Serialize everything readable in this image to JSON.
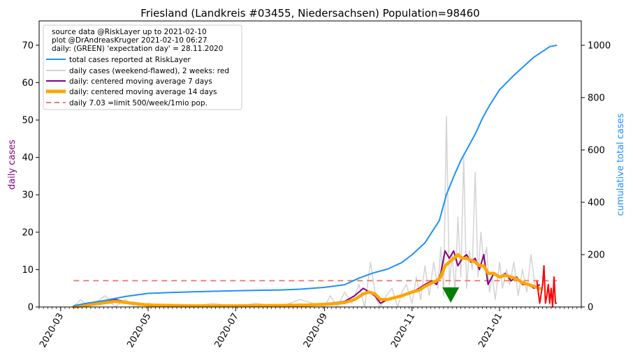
{
  "chart_data": {
    "type": "line",
    "title": "Friesland (Landkreis #03455, Niedersachsen) Population=98460",
    "ylabel_left": "daily cases",
    "ylabel_right": "cumulative total cases",
    "ylim_left": [
      0,
      76.5
    ],
    "ylim_right": [
      0,
      1093
    ],
    "yticks_left": [
      "0",
      "10",
      "20",
      "30",
      "40",
      "50",
      "60",
      "70"
    ],
    "yticks_right": [
      "0",
      "200",
      "400",
      "600",
      "800",
      "1000"
    ],
    "xticks": [
      "2020-03",
      "2020-05",
      "2020-07",
      "2020-09",
      "2020-11",
      "2021-01"
    ],
    "xlim": [
      "2020-02-15",
      "2021-02-27"
    ],
    "grid": false,
    "legend_position": "top-left",
    "legend_notes": [
      "source data @RiskLayer up to 2021-02-10",
      "plot @DrAndreasKruger 2021-02-10 06:27",
      "daily: (GREEN) 'expectation day' = 28.11.2020"
    ],
    "colors": {
      "total": "#1e90ff",
      "daily": "#d3d3d3",
      "daily_recent": "#ff0000",
      "ma7": "#800080",
      "ma14": "#ffa500",
      "limit": "#e8806f",
      "marker": "#008000",
      "left_axis_label": "#800080",
      "right_axis_label": "#1e90ff"
    },
    "expectation_day": {
      "date": "2020-11-28",
      "value": 3
    },
    "series": [
      {
        "name": "total cases reported at RiskLayer",
        "axis": "right",
        "x": [
          "2020-03-10",
          "2020-03-20",
          "2020-04-01",
          "2020-04-15",
          "2020-05-01",
          "2020-05-15",
          "2020-06-01",
          "2020-07-01",
          "2020-08-01",
          "2020-08-15",
          "2020-09-01",
          "2020-09-15",
          "2020-09-25",
          "2020-10-05",
          "2020-10-15",
          "2020-10-25",
          "2020-11-01",
          "2020-11-10",
          "2020-11-20",
          "2020-11-25",
          "2020-12-01",
          "2020-12-05",
          "2020-12-10",
          "2020-12-15",
          "2020-12-20",
          "2020-12-25",
          "2021-01-01",
          "2021-01-10",
          "2021-01-20",
          "2021-01-25",
          "2021-02-01",
          "2021-02-05",
          "2021-02-10"
        ],
        "y": [
          5,
          15,
          25,
          40,
          52,
          55,
          58,
          62,
          65,
          68,
          75,
          85,
          110,
          130,
          145,
          170,
          200,
          245,
          330,
          430,
          510,
          560,
          610,
          660,
          720,
          770,
          830,
          880,
          930,
          955,
          980,
          995,
          1000
        ]
      },
      {
        "name": "daily cases (weekend-flawed), 2 weeks: red",
        "axis": "left",
        "x": [
          "2020-03-10",
          "2020-03-15",
          "2020-03-20",
          "2020-03-25",
          "2020-04-01",
          "2020-04-08",
          "2020-04-15",
          "2020-04-22",
          "2020-05-01",
          "2020-05-15",
          "2020-06-01",
          "2020-06-15",
          "2020-07-01",
          "2020-07-15",
          "2020-08-01",
          "2020-08-15",
          "2020-09-01",
          "2020-09-05",
          "2020-09-10",
          "2020-09-15",
          "2020-09-20",
          "2020-09-25",
          "2020-09-29",
          "2020-10-03",
          "2020-10-07",
          "2020-10-10",
          "2020-10-14",
          "2020-10-18",
          "2020-10-22",
          "2020-10-25",
          "2020-10-28",
          "2020-11-01",
          "2020-11-04",
          "2020-11-07",
          "2020-11-10",
          "2020-11-13",
          "2020-11-16",
          "2020-11-19",
          "2020-11-21",
          "2020-11-23",
          "2020-11-25",
          "2020-11-27",
          "2020-11-29",
          "2020-12-01",
          "2020-12-03",
          "2020-12-05",
          "2020-12-07",
          "2020-12-09",
          "2020-12-11",
          "2020-12-13",
          "2020-12-15",
          "2020-12-17",
          "2020-12-19",
          "2020-12-21",
          "2020-12-23",
          "2020-12-25",
          "2020-12-27",
          "2020-12-29",
          "2021-01-01",
          "2021-01-03",
          "2021-01-06",
          "2021-01-08",
          "2021-01-11",
          "2021-01-14",
          "2021-01-17",
          "2021-01-20",
          "2021-01-23",
          "2021-01-26"
        ],
        "y": [
          0,
          2,
          0,
          1,
          3,
          0,
          2,
          0,
          1,
          0,
          0,
          1,
          0,
          1,
          0,
          2,
          0,
          3,
          0,
          4,
          1,
          6,
          0,
          12,
          2,
          0,
          3,
          5,
          0,
          4,
          6,
          1,
          8,
          2,
          11,
          3,
          12,
          5,
          16,
          3,
          51,
          6,
          14,
          4,
          24,
          8,
          40,
          5,
          15,
          10,
          36,
          8,
          20,
          12,
          16,
          4,
          8,
          2,
          12,
          5,
          10,
          6,
          12,
          3,
          10,
          4,
          14,
          5
        ]
      },
      {
        "name": "daily: centered moving average 7 days",
        "axis": "left",
        "x": [
          "2020-03-10",
          "2020-03-25",
          "2020-04-08",
          "2020-04-20",
          "2020-05-01",
          "2020-06-01",
          "2020-07-01",
          "2020-08-01",
          "2020-08-20",
          "2020-09-05",
          "2020-09-15",
          "2020-09-22",
          "2020-09-28",
          "2020-10-02",
          "2020-10-06",
          "2020-10-10",
          "2020-10-15",
          "2020-10-20",
          "2020-10-25",
          "2020-11-01",
          "2020-11-06",
          "2020-11-10",
          "2020-11-15",
          "2020-11-18",
          "2020-11-21",
          "2020-11-24",
          "2020-11-27",
          "2020-11-30",
          "2020-12-03",
          "2020-12-06",
          "2020-12-09",
          "2020-12-12",
          "2020-12-15",
          "2020-12-18",
          "2020-12-21",
          "2020-12-24",
          "2020-12-28",
          "2021-01-01",
          "2021-01-05",
          "2021-01-09",
          "2021-01-13",
          "2021-01-17",
          "2021-01-21",
          "2021-01-25",
          "2021-01-29"
        ],
        "y": [
          0,
          1,
          2,
          1,
          0.5,
          0.3,
          0.3,
          0.4,
          0.5,
          1,
          1.5,
          3,
          5,
          4,
          3,
          1,
          2,
          2.5,
          3,
          4,
          5,
          6,
          7,
          6,
          9,
          15,
          13,
          15,
          11,
          13,
          14,
          12,
          13,
          10,
          14,
          6,
          9,
          8,
          9,
          7,
          8,
          6,
          6,
          5,
          6
        ]
      },
      {
        "name": "daily: centered moving average 14 days",
        "axis": "left",
        "x": [
          "2020-03-10",
          "2020-03-25",
          "2020-04-08",
          "2020-04-20",
          "2020-05-01",
          "2020-06-01",
          "2020-07-01",
          "2020-08-01",
          "2020-08-20",
          "2020-09-05",
          "2020-09-15",
          "2020-09-22",
          "2020-09-28",
          "2020-10-02",
          "2020-10-06",
          "2020-10-10",
          "2020-10-15",
          "2020-10-20",
          "2020-10-25",
          "2020-11-01",
          "2020-11-06",
          "2020-11-10",
          "2020-11-15",
          "2020-11-18",
          "2020-11-21",
          "2020-11-24",
          "2020-11-27",
          "2020-11-30",
          "2020-12-03",
          "2020-12-06",
          "2020-12-09",
          "2020-12-12",
          "2020-12-15",
          "2020-12-18",
          "2020-12-21",
          "2020-12-24",
          "2020-12-28",
          "2021-01-01",
          "2021-01-05",
          "2021-01-09",
          "2021-01-13",
          "2021-01-17",
          "2021-01-21",
          "2021-01-25",
          "2021-01-29"
        ],
        "y": [
          0,
          0.8,
          1.5,
          1,
          0.5,
          0.3,
          0.3,
          0.4,
          0.5,
          0.8,
          1.2,
          2,
          3.5,
          4,
          3.5,
          2,
          2,
          2.5,
          3,
          4,
          4.5,
          5.5,
          6.5,
          7,
          8,
          11,
          12,
          13,
          14,
          13,
          13,
          12.5,
          12,
          11,
          11,
          9,
          9,
          8,
          8.5,
          8,
          7.5,
          6.5,
          6,
          5.5,
          5
        ]
      },
      {
        "name": "daily 7.03 =limit 500/week/1mio pop.",
        "axis": "left",
        "x": [
          "2020-03-10",
          "2021-02-10"
        ],
        "y": [
          7.03,
          7.03
        ]
      },
      {
        "name": "daily recent 2 weeks",
        "axis": "left",
        "x": [
          "2021-01-27",
          "2021-01-29",
          "2021-01-31",
          "2021-02-01",
          "2021-02-02",
          "2021-02-03",
          "2021-02-04",
          "2021-02-05",
          "2021-02-06",
          "2021-02-07",
          "2021-02-08",
          "2021-02-09",
          "2021-02-10"
        ],
        "y": [
          7,
          1,
          6,
          11,
          1,
          3,
          6,
          1,
          5,
          0,
          8,
          1,
          1
        ]
      }
    ]
  }
}
